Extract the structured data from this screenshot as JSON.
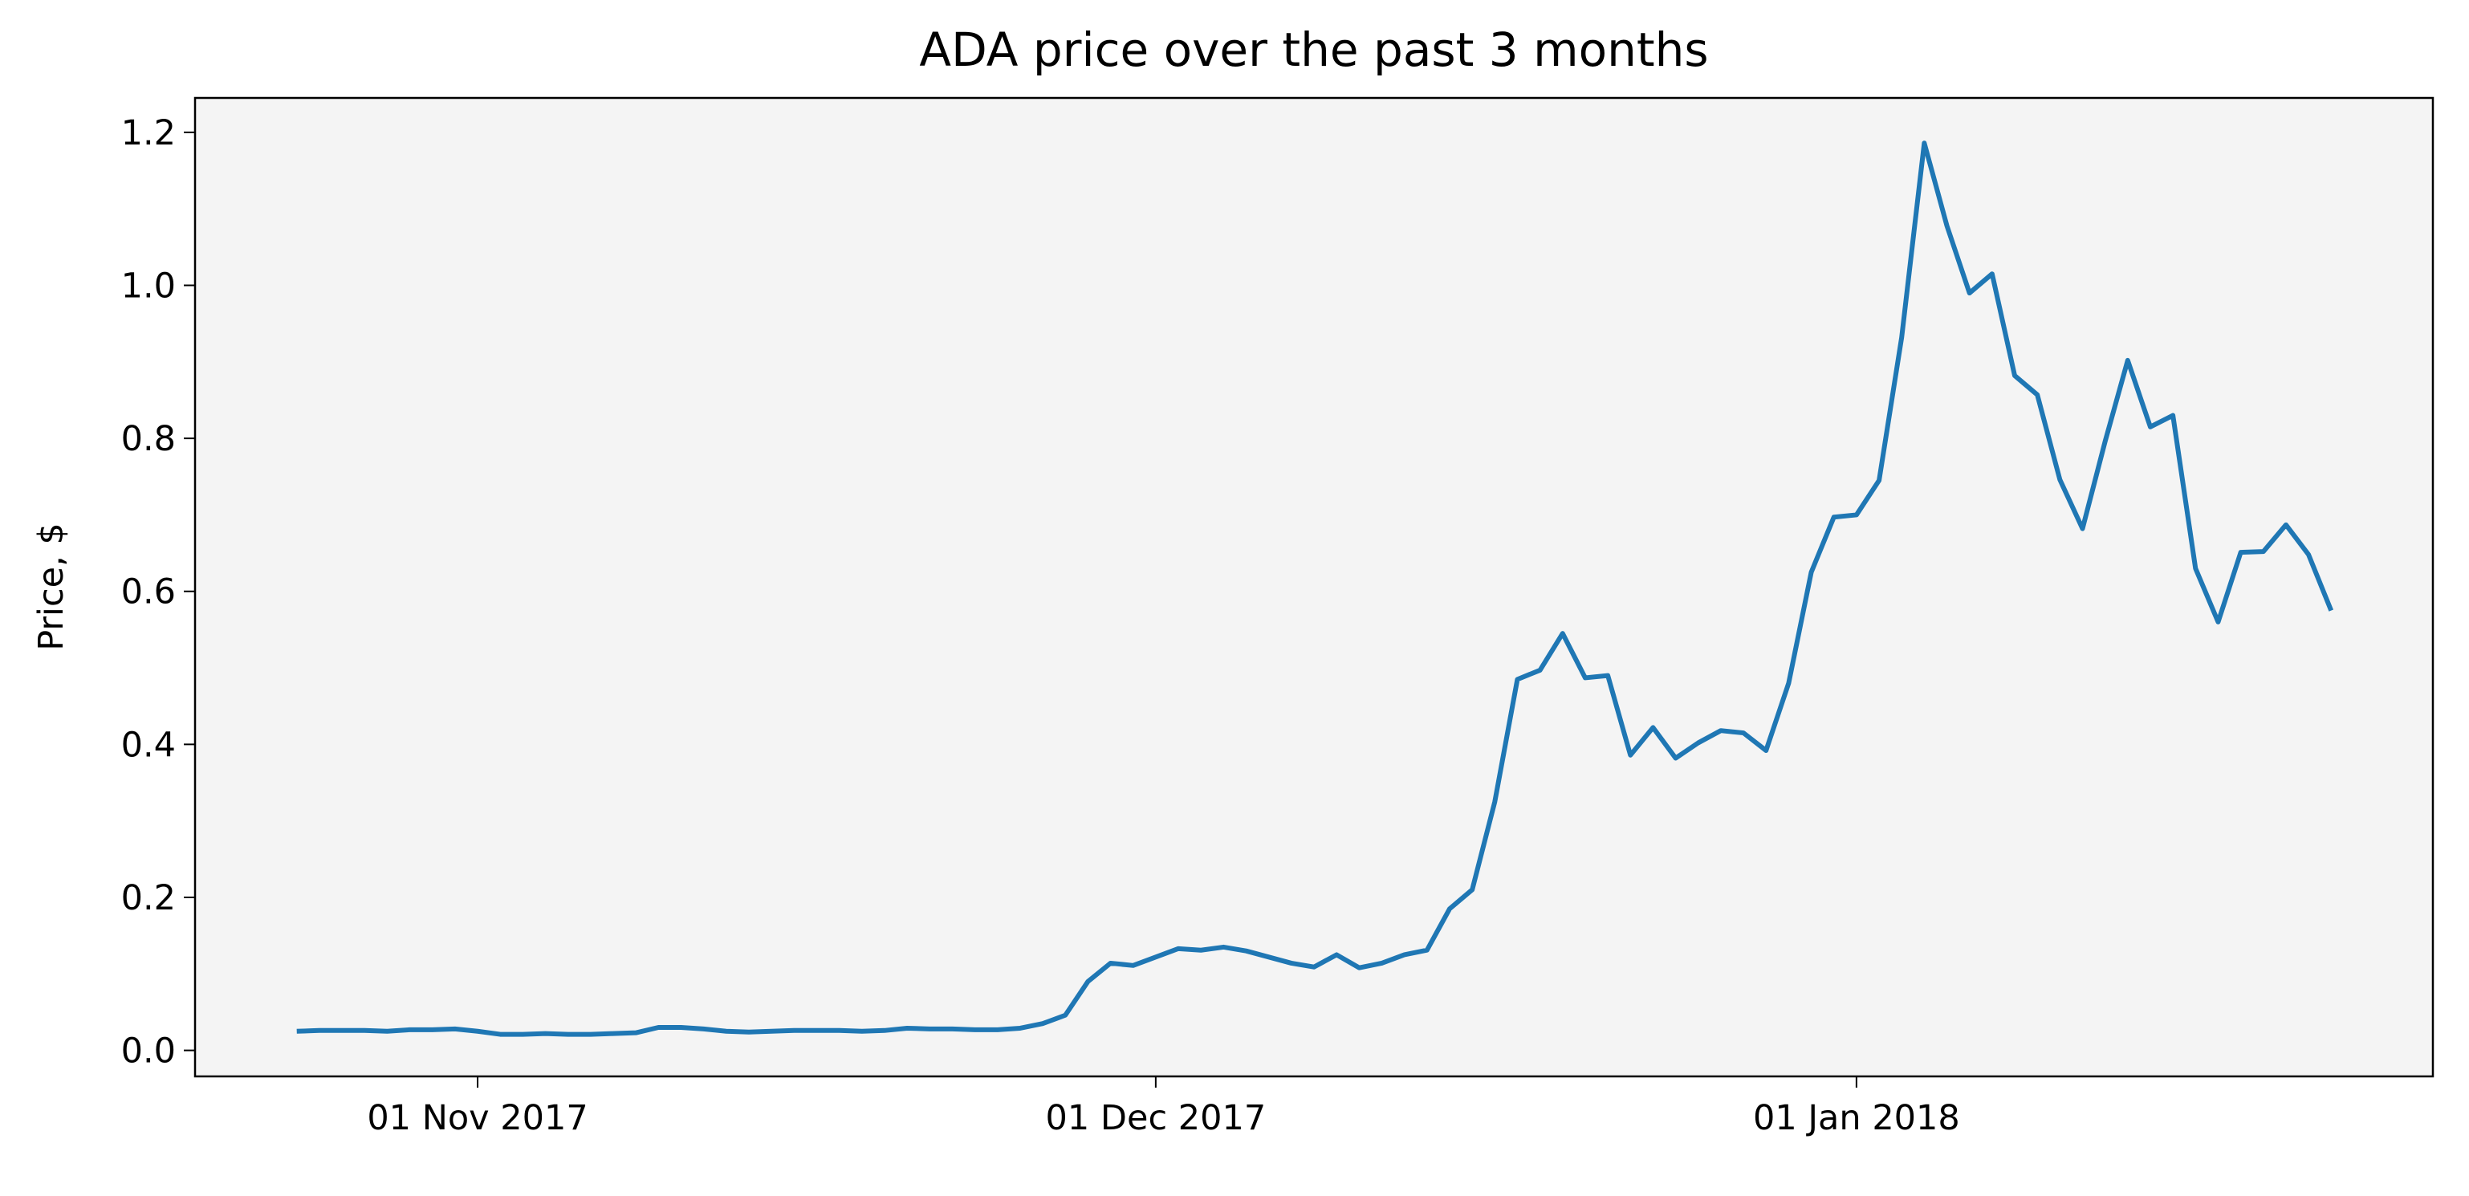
{
  "chart_data": {
    "type": "line",
    "title": "ADA price over the past 3 months",
    "y_label": "Price, $",
    "x": [
      "2017-10-24",
      "2017-10-25",
      "2017-10-26",
      "2017-10-27",
      "2017-10-28",
      "2017-10-29",
      "2017-10-30",
      "2017-10-31",
      "2017-11-01",
      "2017-11-02",
      "2017-11-03",
      "2017-11-04",
      "2017-11-05",
      "2017-11-06",
      "2017-11-07",
      "2017-11-08",
      "2017-11-09",
      "2017-11-10",
      "2017-11-11",
      "2017-11-12",
      "2017-11-13",
      "2017-11-14",
      "2017-11-15",
      "2017-11-16",
      "2017-11-17",
      "2017-11-18",
      "2017-11-19",
      "2017-11-20",
      "2017-11-21",
      "2017-11-22",
      "2017-11-23",
      "2017-11-24",
      "2017-11-25",
      "2017-11-26",
      "2017-11-27",
      "2017-11-28",
      "2017-11-29",
      "2017-11-30",
      "2017-12-01",
      "2017-12-02",
      "2017-12-03",
      "2017-12-04",
      "2017-12-05",
      "2017-12-06",
      "2017-12-07",
      "2017-12-08",
      "2017-12-09",
      "2017-12-10",
      "2017-12-11",
      "2017-12-12",
      "2017-12-13",
      "2017-12-14",
      "2017-12-15",
      "2017-12-16",
      "2017-12-17",
      "2017-12-18",
      "2017-12-19",
      "2017-12-20",
      "2017-12-21",
      "2017-12-22",
      "2017-12-23",
      "2017-12-24",
      "2017-12-25",
      "2017-12-26",
      "2017-12-27",
      "2017-12-28",
      "2017-12-29",
      "2017-12-30",
      "2017-12-31",
      "2018-01-01",
      "2018-01-02",
      "2018-01-03",
      "2018-01-04",
      "2018-01-05",
      "2018-01-06",
      "2018-01-07",
      "2018-01-08",
      "2018-01-09",
      "2018-01-10",
      "2018-01-11",
      "2018-01-12",
      "2018-01-13",
      "2018-01-14",
      "2018-01-15",
      "2018-01-16",
      "2018-01-17",
      "2018-01-18",
      "2018-01-19",
      "2018-01-20",
      "2018-01-21",
      "2018-01-22"
    ],
    "series": [
      {
        "name": "ADA",
        "color": "#1f77b4",
        "values": [
          0.025,
          0.026,
          0.026,
          0.026,
          0.025,
          0.027,
          0.027,
          0.028,
          0.025,
          0.021,
          0.021,
          0.022,
          0.021,
          0.021,
          0.022,
          0.023,
          0.03,
          0.03,
          0.028,
          0.025,
          0.024,
          0.025,
          0.026,
          0.026,
          0.026,
          0.025,
          0.026,
          0.029,
          0.028,
          0.028,
          0.027,
          0.027,
          0.029,
          0.035,
          0.046,
          0.09,
          0.114,
          0.111,
          0.122,
          0.133,
          0.131,
          0.135,
          0.13,
          0.122,
          0.114,
          0.109,
          0.125,
          0.108,
          0.114,
          0.125,
          0.131,
          0.185,
          0.21,
          0.325,
          0.485,
          0.497,
          0.545,
          0.487,
          0.49,
          0.386,
          0.422,
          0.382,
          0.402,
          0.418,
          0.415,
          0.392,
          0.48,
          0.625,
          0.697,
          0.7,
          0.745,
          0.932,
          1.186,
          1.078,
          0.99,
          1.015,
          0.882,
          0.857,
          0.746,
          0.682,
          0.796,
          0.902,
          0.815,
          0.83,
          0.63,
          0.56,
          0.651,
          0.652,
          0.687,
          0.648,
          0.575
        ]
      }
    ],
    "xlim": [
      "2017-10-19T12:00:00Z",
      "2018-01-26T12:00:00Z"
    ],
    "xticks": [
      {
        "value": "2017-11-01",
        "label": "01 Nov 2017"
      },
      {
        "value": "2017-12-01",
        "label": "01 Dec 2017"
      },
      {
        "value": "2018-01-01",
        "label": "01 Jan 2018"
      }
    ],
    "ylim": [
      -0.034,
      1.245
    ],
    "yticks": [
      {
        "value": 0,
        "label": "0.0"
      },
      0.2,
      0.4,
      0.6,
      0.8,
      {
        "value": 1,
        "label": "1.0"
      },
      1.2
    ],
    "background": "#f4f4f4"
  }
}
